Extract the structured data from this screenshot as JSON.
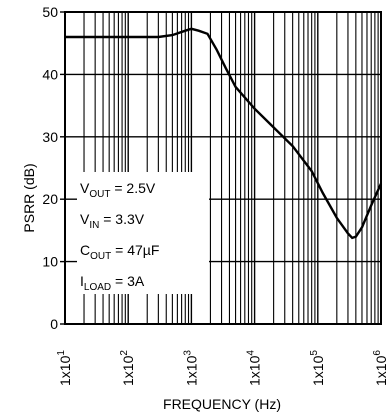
{
  "chart_data": {
    "type": "line",
    "title": "",
    "xlabel": "FREQUENCY (Hz)",
    "ylabel": "PSRR (dB)",
    "x_scale": "log",
    "xlim": [
      10,
      1000000
    ],
    "ylim": [
      0,
      50
    ],
    "grid": true,
    "x_tick_labels": [
      "1x10",
      "1x10",
      "1x10",
      "1x10",
      "1x10",
      "1x10"
    ],
    "x_tick_exponents": [
      "1",
      "2",
      "3",
      "4",
      "5",
      "6"
    ],
    "y_ticks": [
      0,
      10,
      20,
      30,
      40,
      50
    ],
    "conditions": [
      {
        "main": "V",
        "sub": "OUT",
        "rest": " = 2.5V"
      },
      {
        "main": "V",
        "sub": "IN",
        "rest": " = 3.3V"
      },
      {
        "main": "C",
        "sub": "OUT",
        "rest": " = 47µF"
      },
      {
        "main": "I",
        "sub": "LOAD",
        "rest": " = 3A"
      }
    ],
    "series": [
      {
        "x": [
          10,
          30,
          100,
          300,
          500,
          800,
          1000,
          1300,
          1800,
          2500,
          3500,
          5000,
          10000,
          20000,
          40000,
          80000,
          120000,
          200000,
          300000,
          350000,
          400000,
          500000,
          700000,
          1000000
        ],
        "y": [
          46,
          46,
          46,
          46,
          46.3,
          47,
          47.3,
          47,
          46.5,
          44,
          41,
          38,
          34.5,
          31.5,
          28.5,
          24.5,
          21,
          17,
          14.5,
          13.8,
          14,
          15.5,
          19,
          22.5
        ]
      }
    ]
  }
}
